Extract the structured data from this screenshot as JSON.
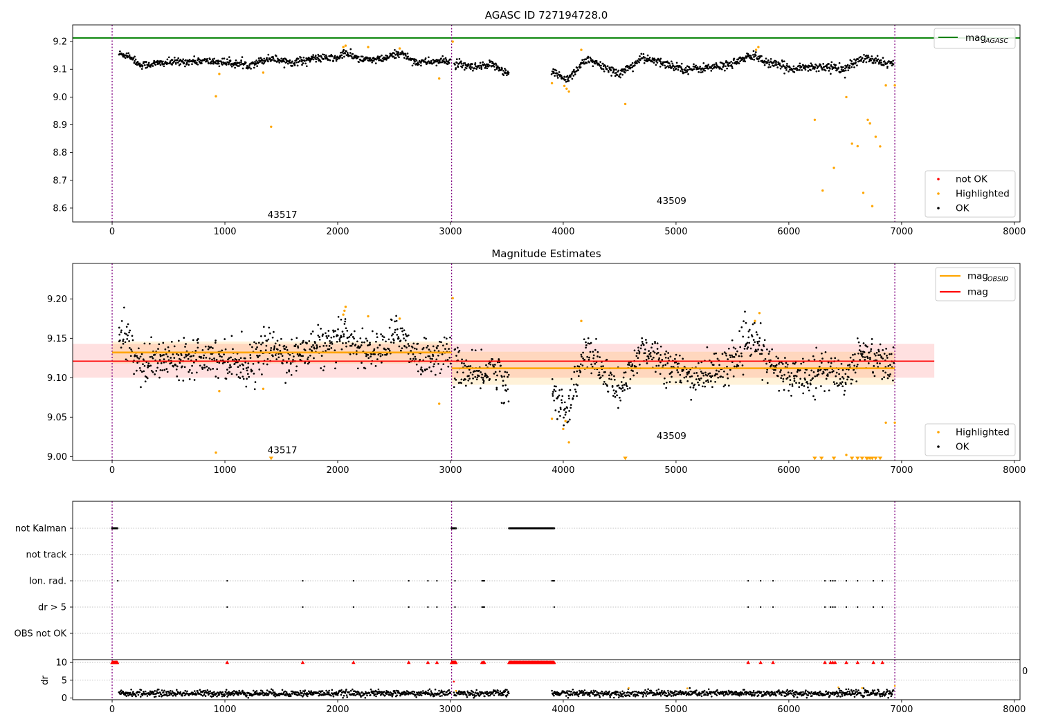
{
  "chart_data": [
    {
      "id": "agasc_panel",
      "type": "scatter",
      "title": "AGASC ID 727194728.0",
      "xlim": [
        -350,
        8050
      ],
      "ylim": [
        8.55,
        9.26
      ],
      "xticks": [
        0,
        1000,
        2000,
        3000,
        4000,
        5000,
        6000,
        7000,
        8000
      ],
      "xtick_labels": [
        "0",
        "1000",
        "2000",
        "3000",
        "4000",
        "5000",
        "6000",
        "7000",
        "8000"
      ],
      "yticks": [
        8.6,
        8.7,
        8.8,
        8.9,
        9.0,
        9.1,
        9.2
      ],
      "ytick_labels": [
        "8.6",
        "8.7",
        "8.8",
        "8.9",
        "9.0",
        "9.1",
        "9.2"
      ],
      "vlines": [
        0,
        3010,
        6940
      ],
      "hline": {
        "name": "mag_AGASC",
        "y": 9.213,
        "color": "#008000"
      },
      "legend_upper": [
        {
          "label": "mag",
          "sub": "AGASC",
          "color": "#008000",
          "kind": "line"
        }
      ],
      "legend_lower": [
        {
          "label": "not OK",
          "color": "#ff0000",
          "kind": "dot"
        },
        {
          "label": "Highlighted",
          "color": "#ffa500",
          "kind": "dot"
        },
        {
          "label": "OK",
          "color": "#000000",
          "kind": "dot"
        }
      ],
      "segments": [
        {
          "x0": 60,
          "x1": 3000,
          "knots": [
            [
              60,
              9.155
            ],
            [
              150,
              9.15
            ],
            [
              250,
              9.115
            ],
            [
              500,
              9.125
            ],
            [
              800,
              9.13
            ],
            [
              1000,
              9.125
            ],
            [
              1200,
              9.115
            ],
            [
              1400,
              9.14
            ],
            [
              1600,
              9.125
            ],
            [
              1800,
              9.14
            ],
            [
              2000,
              9.14
            ],
            [
              2060,
              9.16
            ],
            [
              2200,
              9.135
            ],
            [
              2400,
              9.135
            ],
            [
              2550,
              9.16
            ],
            [
              2700,
              9.125
            ],
            [
              3000,
              9.13
            ]
          ],
          "noise": 0.007
        },
        {
          "x0": 3030,
          "x1": 3520,
          "knots": [
            [
              3030,
              9.12
            ],
            [
              3200,
              9.105
            ],
            [
              3400,
              9.115
            ],
            [
              3500,
              9.085
            ]
          ],
          "noise": 0.008
        },
        {
          "x0": 3900,
          "x1": 6930,
          "knots": [
            [
              3900,
              9.09
            ],
            [
              4040,
              9.065
            ],
            [
              4200,
              9.135
            ],
            [
              4500,
              9.085
            ],
            [
              4600,
              9.11
            ],
            [
              4700,
              9.14
            ],
            [
              4900,
              9.12
            ],
            [
              5100,
              9.1
            ],
            [
              5400,
              9.11
            ],
            [
              5700,
              9.15
            ],
            [
              5800,
              9.125
            ],
            [
              6000,
              9.105
            ],
            [
              6300,
              9.11
            ],
            [
              6500,
              9.1
            ],
            [
              6650,
              9.14
            ],
            [
              6900,
              9.12
            ]
          ],
          "noise": 0.008
        }
      ],
      "highlighted": [
        [
          920,
          9.003
        ],
        [
          950,
          9.083
        ],
        [
          1340,
          9.088
        ],
        [
          1410,
          8.893
        ],
        [
          2050,
          9.18
        ],
        [
          2070,
          9.185
        ],
        [
          2270,
          9.18
        ],
        [
          2550,
          9.175
        ],
        [
          2900,
          9.067
        ],
        [
          3020,
          9.2
        ],
        [
          3900,
          9.05
        ],
        [
          4010,
          9.04
        ],
        [
          4030,
          9.03
        ],
        [
          4050,
          9.02
        ],
        [
          4160,
          9.17
        ],
        [
          4550,
          8.975
        ],
        [
          5710,
          9.17
        ],
        [
          5730,
          9.18
        ],
        [
          6230,
          8.918
        ],
        [
          6300,
          8.663
        ],
        [
          6400,
          8.745
        ],
        [
          6510,
          9.0
        ],
        [
          6560,
          8.832
        ],
        [
          6610,
          8.823
        ],
        [
          6660,
          8.655
        ],
        [
          6700,
          8.918
        ],
        [
          6720,
          8.905
        ],
        [
          6740,
          8.607
        ],
        [
          6770,
          8.857
        ],
        [
          6810,
          8.822
        ],
        [
          6860,
          9.042
        ],
        [
          6940,
          9.042
        ]
      ],
      "annotations": [
        {
          "text": "43517",
          "x": 1510,
          "y": 8.565
        },
        {
          "text": "43509",
          "x": 4960,
          "y": 8.615
        }
      ]
    },
    {
      "id": "magnitude_panel",
      "type": "scatter",
      "title": "Magnitude Estimates",
      "xlim": [
        -350,
        8050
      ],
      "ylim": [
        8.995,
        9.245
      ],
      "xticks": [
        0,
        1000,
        2000,
        3000,
        4000,
        5000,
        6000,
        7000,
        8000
      ],
      "xtick_labels": [
        "0",
        "1000",
        "2000",
        "3000",
        "4000",
        "5000",
        "6000",
        "7000",
        "8000"
      ],
      "yticks": [
        9.0,
        9.05,
        9.1,
        9.15,
        9.2
      ],
      "ytick_labels": [
        "9.00",
        "9.05",
        "9.10",
        "9.15",
        "9.20"
      ],
      "vlines": [
        0,
        3010,
        6940
      ],
      "mag": {
        "y": 9.121,
        "band": [
          9.1,
          9.143
        ],
        "x0": -350,
        "x1": 7290,
        "color": "#ff0000"
      },
      "mag_obsid": [
        {
          "x0": 0,
          "x1": 3010,
          "y": 9.132,
          "band": [
            9.118,
            9.146
          ]
        },
        {
          "x0": 3010,
          "x1": 6940,
          "y": 9.112,
          "band": [
            9.091,
            9.133
          ]
        }
      ],
      "legend_upper": [
        {
          "label": "mag",
          "sub": "OBSID",
          "color": "#ffa500",
          "kind": "line"
        },
        {
          "label": "mag",
          "sub": "",
          "color": "#ff0000",
          "kind": "line"
        }
      ],
      "legend_lower": [
        {
          "label": "Highlighted",
          "color": "#ffa500",
          "kind": "dot"
        },
        {
          "label": "OK",
          "color": "#000000",
          "kind": "dot"
        }
      ],
      "segments": [
        {
          "x0": 60,
          "x1": 3000,
          "knots": [
            [
              60,
              9.15
            ],
            [
              150,
              9.15
            ],
            [
              250,
              9.115
            ],
            [
              500,
              9.125
            ],
            [
              800,
              9.13
            ],
            [
              1000,
              9.125
            ],
            [
              1200,
              9.115
            ],
            [
              1400,
              9.14
            ],
            [
              1600,
              9.125
            ],
            [
              1800,
              9.14
            ],
            [
              2000,
              9.14
            ],
            [
              2060,
              9.16
            ],
            [
              2200,
              9.135
            ],
            [
              2400,
              9.135
            ],
            [
              2550,
              9.16
            ],
            [
              2700,
              9.125
            ],
            [
              3000,
              9.13
            ]
          ],
          "noise": 0.012
        },
        {
          "x0": 3030,
          "x1": 3520,
          "knots": [
            [
              3030,
              9.12
            ],
            [
              3200,
              9.1
            ],
            [
              3400,
              9.115
            ],
            [
              3500,
              9.085
            ]
          ],
          "noise": 0.012
        },
        {
          "x0": 3900,
          "x1": 6930,
          "knots": [
            [
              3900,
              9.08
            ],
            [
              4040,
              9.06
            ],
            [
              4200,
              9.135
            ],
            [
              4500,
              9.08
            ],
            [
              4600,
              9.105
            ],
            [
              4700,
              9.14
            ],
            [
              4900,
              9.12
            ],
            [
              5100,
              9.1
            ],
            [
              5400,
              9.11
            ],
            [
              5700,
              9.15
            ],
            [
              5800,
              9.12
            ],
            [
              6000,
              9.1
            ],
            [
              6300,
              9.11
            ],
            [
              6500,
              9.1
            ],
            [
              6650,
              9.135
            ],
            [
              6900,
              9.115
            ]
          ],
          "noise": 0.012
        }
      ],
      "highlighted": [
        [
          920,
          9.005
        ],
        [
          950,
          9.083
        ],
        [
          1340,
          9.086
        ],
        [
          2050,
          9.18
        ],
        [
          2060,
          9.185
        ],
        [
          2070,
          9.19
        ],
        [
          2270,
          9.178
        ],
        [
          2550,
          9.175
        ],
        [
          2900,
          9.067
        ],
        [
          3020,
          9.201
        ],
        [
          3900,
          9.048
        ],
        [
          4000,
          9.035
        ],
        [
          4020,
          9.045
        ],
        [
          4050,
          9.018
        ],
        [
          4160,
          9.172
        ],
        [
          5700,
          9.172
        ],
        [
          5740,
          9.182
        ],
        [
          6510,
          9.002
        ],
        [
          6860,
          9.043
        ],
        [
          6940,
          9.043
        ]
      ],
      "below_markers": [
        1410,
        4550,
        6230,
        6290,
        6400,
        6560,
        6610,
        6650,
        6690,
        6700,
        6720,
        6740,
        6770,
        6810
      ],
      "annotations": [
        {
          "text": "43517",
          "x": 1510,
          "y": 9.004
        },
        {
          "text": "43509",
          "x": 4960,
          "y": 9.022
        }
      ]
    },
    {
      "id": "flags_panel",
      "type": "scatter",
      "xlim": [
        -350,
        8050
      ],
      "vlines": [
        0,
        3010,
        6940
      ],
      "rows": [
        "not Kalman",
        "not track",
        "Ion. rad.",
        "dr > 5",
        "OBS not OK"
      ],
      "flag_points": {
        "not Kalman": {
          "ranges": [
            [
              0,
              50
            ],
            [
              3010,
              3050
            ],
            [
              3520,
              3920
            ]
          ]
        },
        "not track": {
          "ranges": []
        },
        "Ion. rad.": {
          "points": [
            50,
            1020,
            1690,
            2140,
            2630,
            2800,
            2880,
            3040,
            3280,
            3290,
            3300,
            3900,
            3910,
            3920,
            5640,
            5750,
            5860,
            6320,
            6370,
            6390,
            6410,
            6510,
            6610,
            6750,
            6830
          ]
        },
        "dr > 5": {
          "points": [
            1020,
            1690,
            2140,
            2630,
            2800,
            2880,
            3040,
            3280,
            3290,
            3300,
            3920,
            5640,
            5750,
            5860,
            6320,
            6370,
            6390,
            6410,
            6510,
            6610,
            6750,
            6830
          ]
        },
        "OBS not OK": {
          "ranges": []
        }
      }
    },
    {
      "id": "dr_panel",
      "type": "scatter",
      "ylabel": "dr",
      "xlim": [
        -350,
        8050
      ],
      "ylim": [
        -0.5,
        10.8
      ],
      "xticks": [
        0,
        1000,
        2000,
        3000,
        4000,
        5000,
        6000,
        7000,
        8000
      ],
      "xtick_labels": [
        "0",
        "1000",
        "2000",
        "3000",
        "4000",
        "5000",
        "6000",
        "7000",
        "8000"
      ],
      "yticks": [
        0,
        5,
        10
      ],
      "ytick_labels": [
        "0",
        "5",
        "10"
      ],
      "vlines": [
        0,
        3010,
        6940
      ],
      "baseline": 1.3,
      "noise": 0.45,
      "ok_segments": [
        [
          60,
          3000
        ],
        [
          3030,
          3520
        ],
        [
          3900,
          6930
        ]
      ],
      "capped_markers": {
        "ranges": [
          [
            0,
            50
          ],
          [
            3010,
            3050
          ],
          [
            3520,
            3920
          ]
        ],
        "points": [
          1020,
          1690,
          2140,
          2630,
          2800,
          2880,
          3280,
          3290,
          3300,
          5640,
          5750,
          5860,
          6320,
          6370,
          6390,
          6410,
          6510,
          6610,
          6750,
          6830
        ]
      },
      "highlighted": [
        [
          3030,
          4.6
        ],
        [
          3050,
          2.0
        ],
        [
          4580,
          2.8
        ],
        [
          5100,
          2.7
        ],
        [
          6440,
          3.0
        ],
        [
          6650,
          2.8
        ],
        [
          6940,
          3.4
        ]
      ],
      "clipped_label": "0"
    }
  ]
}
